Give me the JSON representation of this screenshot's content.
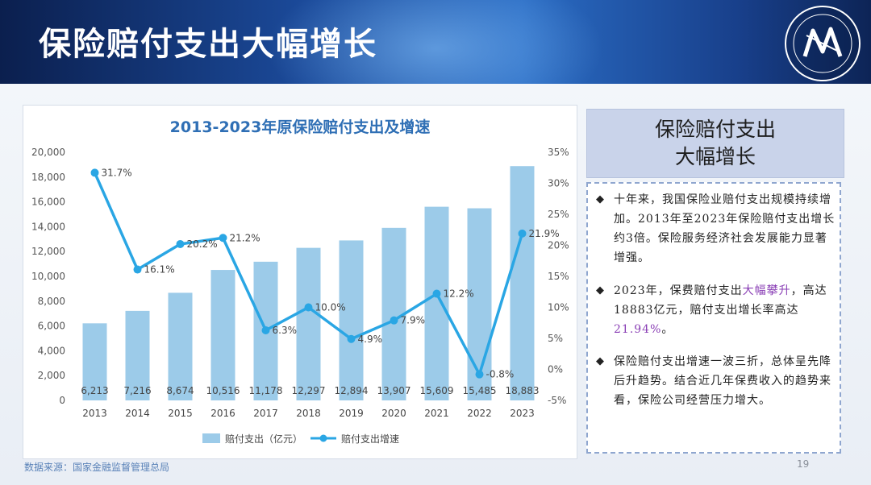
{
  "header": {
    "title": "保险赔付支出大幅增长"
  },
  "source": "数据来源：国家金融监督管理总局",
  "page_number": "19",
  "side": {
    "title_line1": "保险赔付支出",
    "title_line2": "大幅增长",
    "bullet_mark": "◆",
    "bullet1": "十年来，我国保险业赔付支出规模持续增加。2013年至2023年保险赔付支出增长约3倍。保险服务经济社会发展能力显著增强。",
    "bullet2_a": "2023年，保费赔付支出",
    "bullet2_hl1": "大幅攀升",
    "bullet2_b": "，高达18883亿元，赔付支出增长率高达",
    "bullet2_hl2": "21.94%",
    "bullet2_c": "。",
    "bullet3": "保险赔付支出增速一波三折，总体呈先降后升趋势。结合近几年保费收入的趋势来看，保险公司经营压力增大。"
  },
  "colors": {
    "bar": "#9ccbe9",
    "line": "#2aa6e4",
    "title": "#2f6fb5",
    "highlight": "#8a3fb5"
  },
  "chart_data": {
    "type": "bar+line",
    "title": "2013-2023年原保险赔付支出及增速",
    "categories": [
      "2013",
      "2014",
      "2015",
      "2016",
      "2017",
      "2018",
      "2019",
      "2020",
      "2021",
      "2022",
      "2023"
    ],
    "series": [
      {
        "name": "赔付支出（亿元）",
        "type": "bar",
        "axis": "left",
        "values": [
          6213,
          7216,
          8674,
          10516,
          11178,
          12297,
          12894,
          13907,
          15609,
          15485,
          18883
        ],
        "labels": [
          "6,213",
          "7,216",
          "8,674",
          "10,516",
          "11,178",
          "12,297",
          "12,894",
          "13,907",
          "15,609",
          "15,485",
          "18,883"
        ]
      },
      {
        "name": "赔付支出增速",
        "type": "line",
        "axis": "right",
        "values": [
          31.7,
          16.1,
          20.2,
          21.2,
          6.3,
          10.0,
          4.9,
          7.9,
          12.2,
          -0.8,
          21.9
        ],
        "labels": [
          "31.7%",
          "16.1%",
          "20.2%",
          "21.2%",
          "6.3%",
          "10.0%",
          "4.9%",
          "7.9%",
          "12.2%",
          "-0.8%",
          "21.9%"
        ]
      }
    ],
    "y_left": {
      "min": 0,
      "max": 20000,
      "ticks": [
        "0",
        "2,000",
        "4,000",
        "6,000",
        "8,000",
        "10,000",
        "12,000",
        "14,000",
        "16,000",
        "18,000",
        "20,000"
      ]
    },
    "y_right": {
      "min": -5,
      "max": 35,
      "ticks": [
        "-5%",
        "0%",
        "5%",
        "10%",
        "15%",
        "20%",
        "25%",
        "30%",
        "35%"
      ]
    },
    "grid": false,
    "legend_position": "bottom"
  }
}
